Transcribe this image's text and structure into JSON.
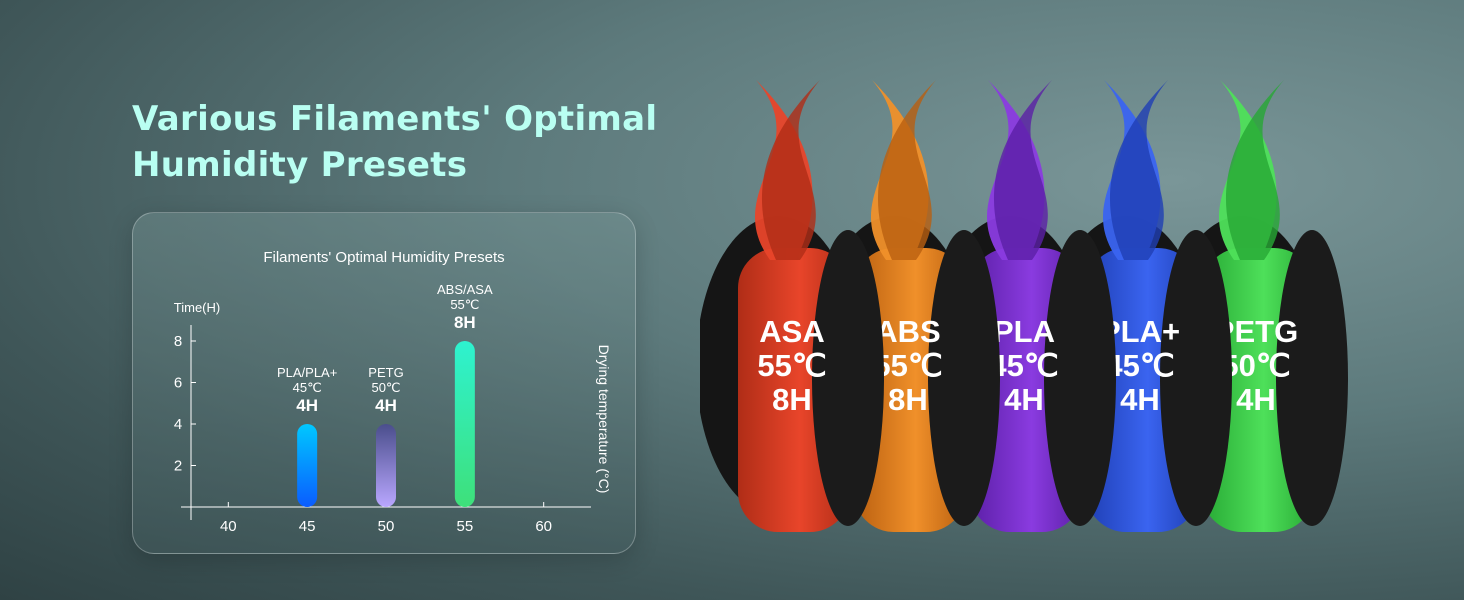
{
  "headline": {
    "line1": "Various Filaments' Optimal",
    "line2": "Humidity Presets"
  },
  "chart_data": {
    "type": "bar",
    "title": "Filaments' Optimal Humidity Presets",
    "ylabel": "Time(H)",
    "xlabel": "Drying temperature (°C)",
    "ylim": [
      0,
      8
    ],
    "yticks": [
      "2",
      "4",
      "6",
      "8"
    ],
    "xticks": [
      "40",
      "45",
      "50",
      "55",
      "60"
    ],
    "bars": [
      {
        "x": 45,
        "value": 4,
        "name": "PLA/PLA+",
        "temp": "45℃",
        "label": "4H",
        "colors": [
          "#00c8ff",
          "#0a5cff"
        ]
      },
      {
        "x": 50,
        "value": 4,
        "name": "PETG",
        "temp": "50℃",
        "label": "4H",
        "colors": [
          "#4a4e8c",
          "#b9a7ff"
        ]
      },
      {
        "x": 55,
        "value": 8,
        "name": "ABS/ASA",
        "temp": "55℃",
        "label": "8H",
        "colors": [
          "#2ef2d0",
          "#3ee07a"
        ]
      }
    ]
  },
  "spools": [
    {
      "name": "ASA",
      "temp": "55℃",
      "time": "8H",
      "color": "#e8452a",
      "dark": "#b02d17"
    },
    {
      "name": "ABS",
      "temp": "55℃",
      "time": "8H",
      "color": "#f0902a",
      "dark": "#b95f10"
    },
    {
      "name": "PLA",
      "temp": "45℃",
      "time": "4H",
      "color": "#8a3be0",
      "dark": "#5b1fa6"
    },
    {
      "name": "PLA+",
      "temp": "45℃",
      "time": "4H",
      "color": "#3a64f0",
      "dark": "#1f3fb4"
    },
    {
      "name": "PETG",
      "temp": "50℃",
      "time": "4H",
      "color": "#4ee05a",
      "dark": "#27a834"
    }
  ]
}
